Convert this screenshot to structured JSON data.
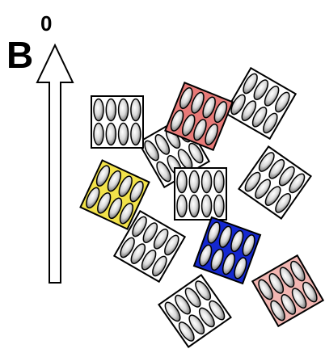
{
  "label": {
    "base": "B",
    "superscript": "0"
  }
}
